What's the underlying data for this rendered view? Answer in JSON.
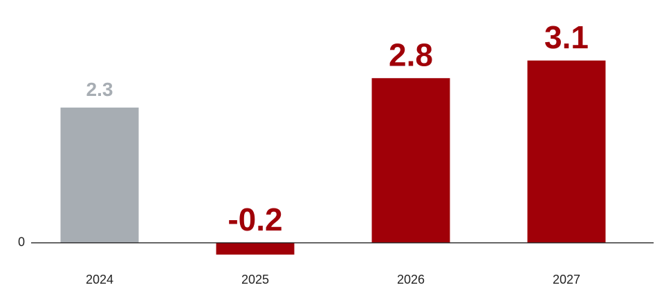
{
  "chart_data": {
    "type": "bar",
    "categories": [
      "2024",
      "2025",
      "2026",
      "2027"
    ],
    "values": [
      2.3,
      -0.2,
      2.8,
      3.1
    ],
    "colors": [
      "#a7adb3",
      "#a00008",
      "#a00008",
      "#a00008"
    ],
    "ylim": [
      -1,
      4
    ],
    "yticks": [
      0
    ]
  }
}
